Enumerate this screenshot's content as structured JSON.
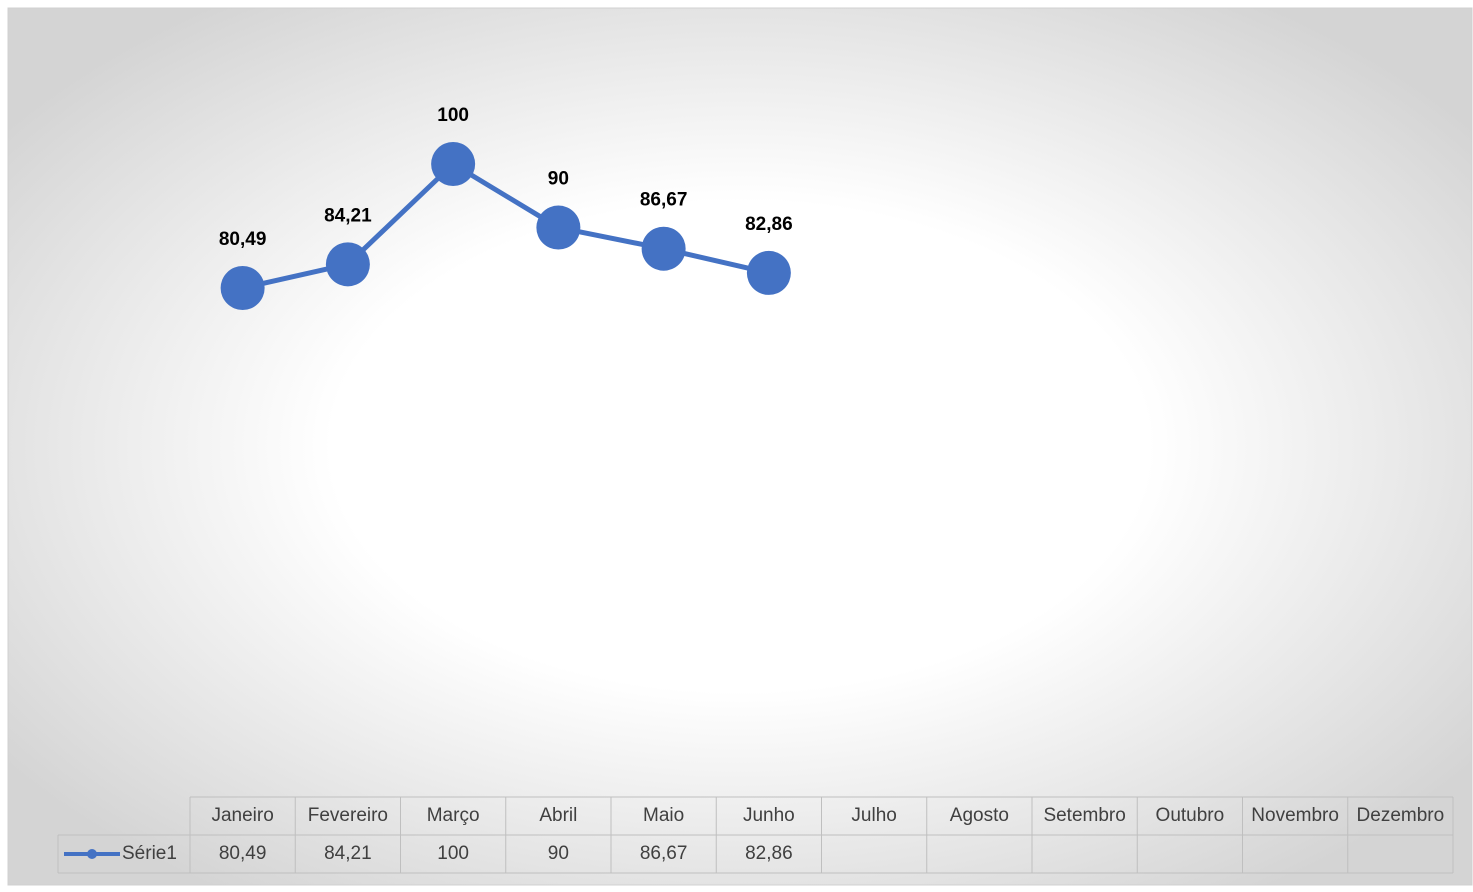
{
  "chart_data": {
    "type": "line",
    "categories": [
      "Janeiro",
      "Fevereiro",
      "Março",
      "Abril",
      "Maio",
      "Junho",
      "Julho",
      "Agosto",
      "Setembro",
      "Outubro",
      "Novembro",
      "Dezembro"
    ],
    "series": [
      {
        "name": "Série1",
        "color": "#4472c4",
        "values": [
          80.49,
          84.21,
          100,
          90,
          86.67,
          82.86,
          null,
          null,
          null,
          null,
          null,
          null
        ],
        "value_labels": [
          "80,49",
          "84,21",
          "100",
          "90",
          "86,67",
          "82,86",
          null,
          null,
          null,
          null,
          null,
          null
        ]
      }
    ]
  }
}
